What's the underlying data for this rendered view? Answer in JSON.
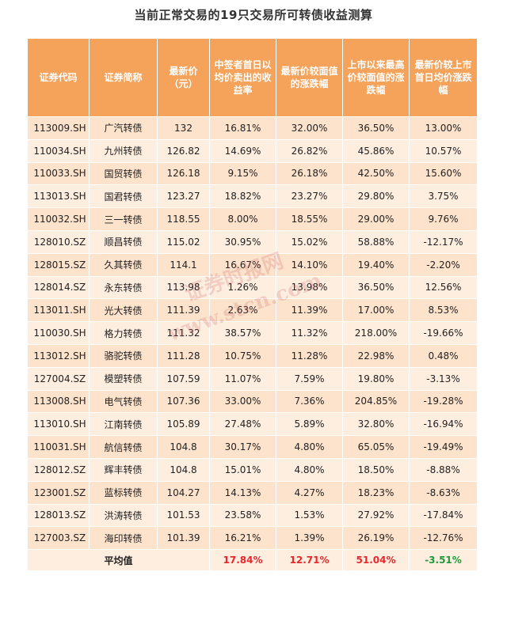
{
  "title": "当前正常交易的19只交易所可转债收益测算",
  "headers": [
    "证券代码",
    "证券简称",
    "最新价（元）",
    "中签者首日以均价卖出的收益率",
    "最新价较面值的涨跌幅",
    "上市以来最高价较面值的涨跌幅",
    "最新价较上市首日均价涨跌幅"
  ],
  "rows": [
    [
      "113009.SH",
      "广汽转债",
      "132",
      "16.81%",
      "32.00%",
      "36.50%",
      "13.00%"
    ],
    [
      "110034.SH",
      "九州转债",
      "126.82",
      "14.69%",
      "26.82%",
      "45.86%",
      "10.57%"
    ],
    [
      "110033.SH",
      "国贸转债",
      "126.18",
      "9.15%",
      "26.18%",
      "42.50%",
      "15.60%"
    ],
    [
      "113013.SH",
      "国君转债",
      "123.27",
      "18.82%",
      "23.27%",
      "29.80%",
      "3.75%"
    ],
    [
      "110032.SH",
      "三一转债",
      "118.55",
      "8.00%",
      "18.55%",
      "29.00%",
      "9.76%"
    ],
    [
      "128010.SZ",
      "顺昌转债",
      "115.02",
      "30.95%",
      "15.02%",
      "58.88%",
      "-12.17%"
    ],
    [
      "128015.SZ",
      "久其转债",
      "114.1",
      "16.67%",
      "14.10%",
      "19.40%",
      "-2.20%"
    ],
    [
      "128014.SZ",
      "永东转债",
      "113.98",
      "1.26%",
      "13.98%",
      "36.50%",
      "12.56%"
    ],
    [
      "113011.SH",
      "光大转债",
      "111.39",
      "2.63%",
      "11.39%",
      "17.00%",
      "8.53%"
    ],
    [
      "110030.SH",
      "格力转债",
      "111.32",
      "38.57%",
      "11.32%",
      "218.00%",
      "-19.66%"
    ],
    [
      "113012.SH",
      "骆驼转债",
      "111.28",
      "10.75%",
      "11.28%",
      "22.98%",
      "0.48%"
    ],
    [
      "127004.SZ",
      "模塑转债",
      "107.59",
      "11.07%",
      "7.59%",
      "19.80%",
      "-3.13%"
    ],
    [
      "113008.SH",
      "电气转债",
      "107.36",
      "33.00%",
      "7.36%",
      "204.85%",
      "-19.28%"
    ],
    [
      "113010.SH",
      "江南转债",
      "105.89",
      "27.48%",
      "5.89%",
      "32.80%",
      "-16.94%"
    ],
    [
      "110031.SH",
      "航信转债",
      "104.8",
      "30.17%",
      "4.80%",
      "65.05%",
      "-19.49%"
    ],
    [
      "128012.SZ",
      "辉丰转债",
      "104.8",
      "15.01%",
      "4.80%",
      "18.50%",
      "-8.88%"
    ],
    [
      "123001.SZ",
      "蓝标转债",
      "104.27",
      "14.13%",
      "4.27%",
      "18.23%",
      "-8.63%"
    ],
    [
      "128013.SZ",
      "洪涛转债",
      "101.53",
      "23.58%",
      "1.53%",
      "27.92%",
      "-17.84%"
    ],
    [
      "127003.SZ",
      "海印转债",
      "101.39",
      "16.21%",
      "1.39%",
      "26.19%",
      "-12.76%"
    ]
  ],
  "average": {
    "label": "平均值",
    "first_day_return": "17.84%",
    "latest_vs_par": "12.71%",
    "high_vs_par": "51.04%",
    "latest_vs_first_day": "-3.51%"
  },
  "colors": {
    "header_bg": "#f5a25a",
    "row_odd_bg": "#fde3cc",
    "row_even_bg": "#fdeedf",
    "avg_red": "#e8262b",
    "avg_green": "#1f9a3a"
  }
}
